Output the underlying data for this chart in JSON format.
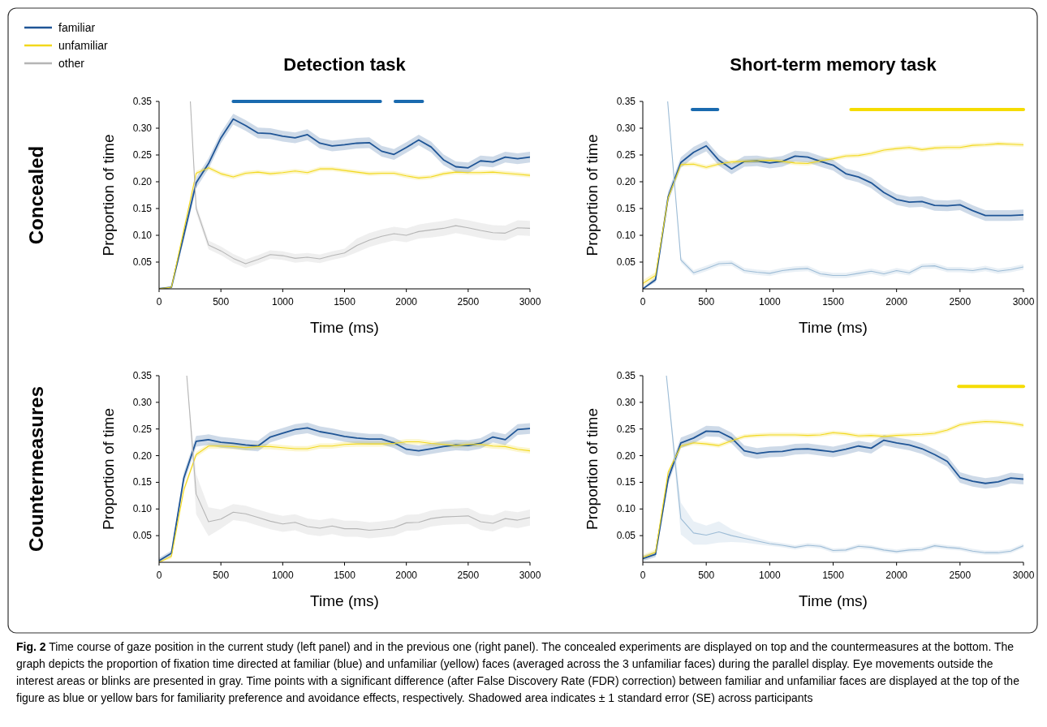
{
  "chart_data": [
    {
      "type": "line",
      "title": "Detection task",
      "xlabel": "Time (ms)",
      "ylabel": "Proportion of time",
      "legend": "top left",
      "annotations": [
        "Concealed"
      ],
      "x": [
        0,
        100,
        200,
        300,
        400,
        500,
        600,
        700,
        800,
        900,
        1000,
        1100,
        1200,
        1300,
        1400,
        1500,
        1600,
        1700,
        1800,
        1900,
        2000,
        2100,
        2200,
        2300,
        2400,
        2500,
        2600,
        2700,
        2800,
        2900,
        3000
      ],
      "xlim": [
        0,
        3000
      ],
      "xticks": [
        0,
        500,
        1000,
        1500,
        2000,
        2500,
        3000
      ],
      "ylim": [
        0,
        0.35
      ],
      "yticks": [
        {
          "value": 0.05,
          "label": "0.05"
        },
        {
          "value": 0.1,
          "label": "0.10"
        },
        {
          "value": 0.15,
          "label": "0.15"
        },
        {
          "value": 0.2,
          "label": "0.20"
        },
        {
          "value": 0.25,
          "label": "0.25"
        },
        {
          "value": 0.3,
          "label": "0.30"
        },
        {
          "value": 0.35,
          "label": "0.35"
        }
      ],
      "series": [
        {
          "color": "#1a6aaf",
          "x": [
            600,
            1790
          ],
          "values": [
            0.35,
            0.35
          ]
        },
        {
          "color": "#1a6aaf",
          "x": [
            1910,
            2130
          ],
          "values": [
            0.35,
            0.35
          ]
        },
        {
          "name": "familiar",
          "color": "#1f5596",
          "values": [
            0,
            0.003,
            0.1,
            0.198,
            0.234,
            0.282,
            0.317,
            0.305,
            0.291,
            0.29,
            0.285,
            0.282,
            0.288,
            0.272,
            0.267,
            0.269,
            0.272,
            0.273,
            0.257,
            0.251,
            0.264,
            0.278,
            0.265,
            0.241,
            0.228,
            0.226,
            0.239,
            0.237,
            0.246,
            0.243,
            0.246
          ],
          "lower": [
            0,
            0.001,
            0.09,
            0.188,
            0.224,
            0.272,
            0.307,
            0.295,
            0.281,
            0.28,
            0.275,
            0.272,
            0.278,
            0.262,
            0.257,
            0.259,
            0.262,
            0.263,
            0.247,
            0.241,
            0.254,
            0.268,
            0.255,
            0.231,
            0.218,
            0.216,
            0.229,
            0.227,
            0.236,
            0.233,
            0.236
          ],
          "upper": [
            0.002,
            0.005,
            0.11,
            0.208,
            0.244,
            0.292,
            0.327,
            0.315,
            0.301,
            0.3,
            0.295,
            0.292,
            0.298,
            0.282,
            0.277,
            0.279,
            0.282,
            0.283,
            0.267,
            0.261,
            0.274,
            0.288,
            0.275,
            0.251,
            0.238,
            0.236,
            0.249,
            0.247,
            0.256,
            0.253,
            0.256
          ]
        },
        {
          "name": "unfamiliar",
          "color": "#f2d81c",
          "values": [
            0,
            0.003,
            0.11,
            0.216,
            0.226,
            0.215,
            0.209,
            0.216,
            0.218,
            0.215,
            0.217,
            0.22,
            0.217,
            0.224,
            0.224,
            0.221,
            0.218,
            0.215,
            0.216,
            0.216,
            0.211,
            0.207,
            0.209,
            0.215,
            0.218,
            0.217,
            0.217,
            0.218,
            0.216,
            0.214,
            0.212
          ],
          "lower": [
            0,
            0.001,
            0.106,
            0.212,
            0.222,
            0.211,
            0.205,
            0.212,
            0.214,
            0.211,
            0.213,
            0.216,
            0.213,
            0.22,
            0.22,
            0.217,
            0.214,
            0.211,
            0.212,
            0.212,
            0.207,
            0.203,
            0.205,
            0.211,
            0.214,
            0.213,
            0.213,
            0.214,
            0.212,
            0.21,
            0.208
          ],
          "upper": [
            0.002,
            0.005,
            0.114,
            0.22,
            0.23,
            0.219,
            0.213,
            0.22,
            0.222,
            0.219,
            0.221,
            0.224,
            0.221,
            0.228,
            0.228,
            0.225,
            0.222,
            0.219,
            0.22,
            0.22,
            0.215,
            0.211,
            0.213,
            0.219,
            0.222,
            0.221,
            0.221,
            0.222,
            0.22,
            0.218,
            0.216
          ]
        },
        {
          "name": "other",
          "color": "#b5b5b5",
          "x": [
            253,
            300,
            400,
            500,
            600,
            700,
            800,
            900,
            1000,
            1100,
            1200,
            1300,
            1400,
            1500,
            1600,
            1700,
            1800,
            1900,
            2000,
            2100,
            2200,
            2300,
            2400,
            2500,
            2600,
            2700,
            2800,
            2900,
            3000
          ],
          "values": [
            0.35,
            0.15,
            0.082,
            0.071,
            0.057,
            0.047,
            0.055,
            0.064,
            0.062,
            0.057,
            0.059,
            0.056,
            0.062,
            0.067,
            0.081,
            0.091,
            0.098,
            0.103,
            0.1,
            0.107,
            0.11,
            0.113,
            0.118,
            0.114,
            0.109,
            0.105,
            0.104,
            0.114,
            0.113
          ],
          "lower": [
            0.35,
            0.142,
            0.074,
            0.063,
            0.049,
            0.039,
            0.047,
            0.056,
            0.054,
            0.049,
            0.051,
            0.048,
            0.054,
            0.059,
            0.068,
            0.078,
            0.085,
            0.09,
            0.087,
            0.094,
            0.096,
            0.099,
            0.104,
            0.1,
            0.095,
            0.091,
            0.09,
            0.1,
            0.099
          ],
          "upper": [
            0.35,
            0.158,
            0.09,
            0.079,
            0.065,
            0.055,
            0.063,
            0.072,
            0.07,
            0.065,
            0.067,
            0.064,
            0.07,
            0.075,
            0.094,
            0.104,
            0.111,
            0.116,
            0.113,
            0.12,
            0.124,
            0.127,
            0.132,
            0.128,
            0.123,
            0.119,
            0.118,
            0.128,
            0.127
          ]
        }
      ]
    },
    {
      "type": "line",
      "title": "Short-term memory task",
      "xlabel": "Time (ms)",
      "ylabel": "Proportion of time",
      "x": [
        0,
        100,
        200,
        300,
        400,
        500,
        600,
        700,
        800,
        900,
        1000,
        1100,
        1200,
        1300,
        1400,
        1500,
        1600,
        1700,
        1800,
        1900,
        2000,
        2100,
        2200,
        2300,
        2400,
        2500,
        2600,
        2700,
        2800,
        2900,
        3000
      ],
      "xlim": [
        0,
        3000
      ],
      "xticks": [
        0,
        500,
        1000,
        1500,
        2000,
        2500,
        3000
      ],
      "ylim": [
        0,
        0.35
      ],
      "yticks": [
        {
          "value": 0.05,
          "label": "0.05"
        },
        {
          "value": 0.1,
          "label": "0.10"
        },
        {
          "value": 0.15,
          "label": "0.15"
        },
        {
          "value": 0.2,
          "label": "0.20"
        },
        {
          "value": 0.25,
          "label": "0.25"
        },
        {
          "value": 0.3,
          "label": "0.30"
        },
        {
          "value": 0.35,
          "label": "0.35"
        }
      ],
      "series": [
        {
          "color": "#1a6aaf",
          "x": [
            390,
            590
          ],
          "values": [
            0.335,
            0.335
          ]
        },
        {
          "color": "#f5dc00",
          "x": [
            1640,
            3000
          ],
          "values": [
            0.335,
            0.335
          ]
        },
        {
          "color": "#1f5596",
          "values": [
            0,
            0.017,
            0.172,
            0.236,
            0.255,
            0.267,
            0.24,
            0.224,
            0.238,
            0.239,
            0.235,
            0.238,
            0.248,
            0.246,
            0.238,
            0.231,
            0.215,
            0.209,
            0.198,
            0.18,
            0.167,
            0.162,
            0.163,
            0.156,
            0.155,
            0.157,
            0.146,
            0.137,
            0.137,
            0.137,
            0.138
          ],
          "lower": [
            0,
            0.012,
            0.162,
            0.226,
            0.245,
            0.257,
            0.23,
            0.214,
            0.228,
            0.229,
            0.225,
            0.228,
            0.238,
            0.236,
            0.228,
            0.221,
            0.205,
            0.199,
            0.188,
            0.17,
            0.157,
            0.152,
            0.153,
            0.146,
            0.145,
            0.147,
            0.136,
            0.127,
            0.127,
            0.127,
            0.128
          ],
          "upper": [
            0.002,
            0.022,
            0.182,
            0.246,
            0.265,
            0.277,
            0.25,
            0.234,
            0.248,
            0.249,
            0.245,
            0.248,
            0.258,
            0.256,
            0.248,
            0.241,
            0.225,
            0.219,
            0.208,
            0.19,
            0.177,
            0.172,
            0.173,
            0.166,
            0.165,
            0.167,
            0.156,
            0.147,
            0.147,
            0.147,
            0.148
          ]
        },
        {
          "color": "#f2d81c",
          "values": [
            0.01,
            0.025,
            0.17,
            0.232,
            0.233,
            0.227,
            0.233,
            0.237,
            0.238,
            0.239,
            0.24,
            0.238,
            0.235,
            0.234,
            0.239,
            0.243,
            0.248,
            0.249,
            0.253,
            0.259,
            0.262,
            0.264,
            0.26,
            0.263,
            0.264,
            0.264,
            0.268,
            0.269,
            0.271,
            0.27,
            0.269
          ],
          "lower": [
            0.004,
            0.019,
            0.166,
            0.228,
            0.229,
            0.223,
            0.229,
            0.233,
            0.234,
            0.235,
            0.236,
            0.234,
            0.231,
            0.23,
            0.235,
            0.239,
            0.244,
            0.245,
            0.249,
            0.255,
            0.258,
            0.26,
            0.256,
            0.259,
            0.26,
            0.26,
            0.264,
            0.265,
            0.267,
            0.266,
            0.265
          ],
          "upper": [
            0.016,
            0.031,
            0.174,
            0.236,
            0.237,
            0.231,
            0.237,
            0.241,
            0.242,
            0.243,
            0.244,
            0.242,
            0.239,
            0.238,
            0.243,
            0.247,
            0.252,
            0.253,
            0.257,
            0.263,
            0.266,
            0.268,
            0.264,
            0.267,
            0.268,
            0.268,
            0.272,
            0.273,
            0.275,
            0.274,
            0.273
          ]
        },
        {
          "color": "#9dbcd6",
          "x": [
            196,
            300,
            400,
            500,
            600,
            700,
            800,
            900,
            1000,
            1100,
            1200,
            1300,
            1400,
            1500,
            1600,
            1700,
            1800,
            1900,
            2000,
            2100,
            2200,
            2300,
            2400,
            2500,
            2600,
            2700,
            2800,
            2900,
            3000
          ],
          "values": [
            0.35,
            0.054,
            0.03,
            0.038,
            0.047,
            0.048,
            0.034,
            0.031,
            0.029,
            0.034,
            0.037,
            0.038,
            0.028,
            0.025,
            0.025,
            0.029,
            0.033,
            0.028,
            0.034,
            0.03,
            0.042,
            0.043,
            0.036,
            0.036,
            0.034,
            0.038,
            0.033,
            0.036,
            0.041
          ],
          "lower": [
            0.35,
            0.049,
            0.025,
            0.033,
            0.042,
            0.043,
            0.029,
            0.026,
            0.024,
            0.029,
            0.032,
            0.033,
            0.023,
            0.02,
            0.02,
            0.024,
            0.028,
            0.023,
            0.029,
            0.025,
            0.037,
            0.038,
            0.031,
            0.031,
            0.029,
            0.033,
            0.028,
            0.031,
            0.036
          ],
          "upper": [
            0.35,
            0.059,
            0.035,
            0.043,
            0.052,
            0.053,
            0.039,
            0.036,
            0.034,
            0.039,
            0.042,
            0.043,
            0.033,
            0.03,
            0.03,
            0.034,
            0.038,
            0.033,
            0.039,
            0.035,
            0.047,
            0.048,
            0.041,
            0.041,
            0.039,
            0.043,
            0.038,
            0.041,
            0.046
          ]
        }
      ]
    },
    {
      "type": "line",
      "xlabel": "Time (ms)",
      "ylabel": "Proportion of time",
      "annotations": [
        "Countermeasures"
      ],
      "x": [
        0,
        100,
        200,
        300,
        400,
        500,
        600,
        700,
        800,
        900,
        1000,
        1100,
        1200,
        1300,
        1400,
        1500,
        1600,
        1700,
        1800,
        1900,
        2000,
        2100,
        2200,
        2300,
        2400,
        2500,
        2600,
        2700,
        2800,
        2900,
        3000
      ],
      "xlim": [
        0,
        3000
      ],
      "xticks": [
        0,
        500,
        1000,
        1500,
        2000,
        2500,
        3000
      ],
      "ylim": [
        0,
        0.35
      ],
      "yticks": [
        {
          "value": 0.05,
          "label": "0.05"
        },
        {
          "value": 0.1,
          "label": "0.10"
        },
        {
          "value": 0.15,
          "label": "0.15"
        },
        {
          "value": 0.2,
          "label": "0.20"
        },
        {
          "value": 0.25,
          "label": "0.25"
        },
        {
          "value": 0.3,
          "label": "0.30"
        },
        {
          "value": 0.35,
          "label": "0.35"
        }
      ],
      "series": [
        {
          "color": "#1f5596",
          "values": [
            0.003,
            0.017,
            0.158,
            0.227,
            0.23,
            0.225,
            0.223,
            0.22,
            0.218,
            0.235,
            0.242,
            0.249,
            0.252,
            0.245,
            0.241,
            0.236,
            0.233,
            0.231,
            0.231,
            0.224,
            0.212,
            0.209,
            0.213,
            0.217,
            0.22,
            0.219,
            0.223,
            0.235,
            0.23,
            0.249,
            0.251
          ],
          "lower": [
            0,
            0.012,
            0.148,
            0.217,
            0.22,
            0.215,
            0.213,
            0.21,
            0.208,
            0.225,
            0.232,
            0.239,
            0.242,
            0.235,
            0.231,
            0.226,
            0.223,
            0.221,
            0.221,
            0.214,
            0.202,
            0.199,
            0.203,
            0.207,
            0.21,
            0.209,
            0.213,
            0.225,
            0.22,
            0.239,
            0.241
          ],
          "upper": [
            0.008,
            0.022,
            0.168,
            0.237,
            0.24,
            0.235,
            0.233,
            0.23,
            0.228,
            0.245,
            0.252,
            0.259,
            0.262,
            0.255,
            0.251,
            0.246,
            0.243,
            0.241,
            0.241,
            0.234,
            0.222,
            0.219,
            0.223,
            0.227,
            0.23,
            0.229,
            0.233,
            0.245,
            0.24,
            0.259,
            0.261
          ]
        },
        {
          "color": "#f2d81c",
          "values": [
            0,
            0.011,
            0.136,
            0.202,
            0.218,
            0.218,
            0.217,
            0.215,
            0.217,
            0.217,
            0.215,
            0.213,
            0.213,
            0.218,
            0.218,
            0.221,
            0.222,
            0.222,
            0.222,
            0.223,
            0.226,
            0.226,
            0.223,
            0.221,
            0.219,
            0.221,
            0.221,
            0.218,
            0.217,
            0.212,
            0.209
          ],
          "lower": [
            0,
            0.007,
            0.13,
            0.197,
            0.213,
            0.213,
            0.212,
            0.21,
            0.212,
            0.212,
            0.21,
            0.208,
            0.208,
            0.213,
            0.213,
            0.216,
            0.217,
            0.217,
            0.217,
            0.218,
            0.221,
            0.221,
            0.218,
            0.216,
            0.214,
            0.216,
            0.216,
            0.213,
            0.212,
            0.207,
            0.204
          ],
          "upper": [
            0.004,
            0.015,
            0.142,
            0.207,
            0.223,
            0.223,
            0.222,
            0.22,
            0.222,
            0.222,
            0.22,
            0.218,
            0.218,
            0.223,
            0.223,
            0.226,
            0.227,
            0.227,
            0.227,
            0.228,
            0.231,
            0.231,
            0.228,
            0.226,
            0.224,
            0.226,
            0.226,
            0.223,
            0.222,
            0.217,
            0.214
          ]
        },
        {
          "color": "#b5b5b5",
          "x": [
            224,
            300,
            400,
            500,
            600,
            700,
            800,
            900,
            1000,
            1100,
            1200,
            1300,
            1400,
            1500,
            1600,
            1700,
            1800,
            1900,
            2000,
            2100,
            2200,
            2300,
            2400,
            2500,
            2600,
            2700,
            2800,
            2900,
            3000
          ],
          "values": [
            0.35,
            0.128,
            0.076,
            0.081,
            0.094,
            0.091,
            0.084,
            0.077,
            0.072,
            0.075,
            0.067,
            0.064,
            0.068,
            0.063,
            0.063,
            0.06,
            0.062,
            0.065,
            0.074,
            0.075,
            0.082,
            0.085,
            0.086,
            0.087,
            0.076,
            0.073,
            0.082,
            0.079,
            0.084
          ],
          "lower": [
            0.35,
            0.09,
            0.049,
            0.063,
            0.079,
            0.076,
            0.069,
            0.062,
            0.057,
            0.06,
            0.052,
            0.049,
            0.053,
            0.048,
            0.048,
            0.045,
            0.047,
            0.05,
            0.059,
            0.06,
            0.067,
            0.07,
            0.071,
            0.072,
            0.061,
            0.058,
            0.067,
            0.064,
            0.069
          ],
          "upper": [
            0.35,
            0.165,
            0.103,
            0.099,
            0.109,
            0.106,
            0.099,
            0.092,
            0.087,
            0.09,
            0.082,
            0.079,
            0.083,
            0.078,
            0.078,
            0.075,
            0.077,
            0.08,
            0.089,
            0.09,
            0.097,
            0.1,
            0.101,
            0.102,
            0.091,
            0.088,
            0.097,
            0.094,
            0.099
          ]
        }
      ]
    },
    {
      "type": "line",
      "xlabel": "Time (ms)",
      "ylabel": "Proportion of time",
      "annotations": [
        "Fig. 2 Time course of gaze position in the current study (left panel) and in the previous one (right panel). The concealed experiments are displayed on top and the countermeasures at the bottom. The graph depicts the proportion of fixation time directed at familiar (blue) and unfamiliar (yellow) faces (averaged across the 3 unfamiliar faces) during the parallel display. Eye movements outside the interest areas or blinks are presented in gray. Time points with a significant difference (after False Discovery Rate (FDR) correction) between familiar and unfamiliar faces are displayed at the top of the figure as blue or yellow bars for familiarity preference and avoidance effects, respectively. Shadowed area indicates ± 1 standard error (SE) across participants"
      ],
      "x": [
        0,
        100,
        200,
        300,
        400,
        500,
        600,
        700,
        800,
        900,
        1000,
        1100,
        1200,
        1300,
        1400,
        1500,
        1600,
        1700,
        1800,
        1900,
        2000,
        2100,
        2200,
        2300,
        2400,
        2500,
        2600,
        2700,
        2800,
        2900,
        3000
      ],
      "xlim": [
        0,
        3000
      ],
      "xticks": [
        0,
        500,
        1000,
        1500,
        2000,
        2500,
        3000
      ],
      "ylim": [
        0,
        0.35
      ],
      "yticks": [
        {
          "value": 0.05,
          "label": "0.05"
        },
        {
          "value": 0.1,
          "label": "0.10"
        },
        {
          "value": 0.15,
          "label": "0.15"
        },
        {
          "value": 0.2,
          "label": "0.20"
        },
        {
          "value": 0.25,
          "label": "0.25"
        },
        {
          "value": 0.3,
          "label": "0.30"
        },
        {
          "value": 0.35,
          "label": "0.35"
        }
      ],
      "series": [
        {
          "color": "#f5dc00",
          "x": [
            2490,
            3000
          ],
          "values": [
            0.33,
            0.33
          ]
        },
        {
          "color": "#1f5596",
          "values": [
            0.007,
            0.015,
            0.157,
            0.224,
            0.233,
            0.246,
            0.245,
            0.233,
            0.209,
            0.204,
            0.207,
            0.208,
            0.212,
            0.213,
            0.21,
            0.207,
            0.212,
            0.218,
            0.214,
            0.229,
            0.224,
            0.22,
            0.213,
            0.202,
            0.189,
            0.159,
            0.152,
            0.148,
            0.151,
            0.158,
            0.156
          ],
          "lower": [
            0.002,
            0.01,
            0.147,
            0.214,
            0.223,
            0.236,
            0.235,
            0.223,
            0.199,
            0.194,
            0.197,
            0.198,
            0.202,
            0.203,
            0.2,
            0.197,
            0.202,
            0.208,
            0.204,
            0.219,
            0.214,
            0.21,
            0.203,
            0.192,
            0.179,
            0.149,
            0.142,
            0.138,
            0.141,
            0.148,
            0.146
          ],
          "upper": [
            0.012,
            0.02,
            0.167,
            0.234,
            0.243,
            0.256,
            0.255,
            0.243,
            0.219,
            0.214,
            0.217,
            0.218,
            0.222,
            0.223,
            0.22,
            0.217,
            0.222,
            0.228,
            0.224,
            0.239,
            0.234,
            0.23,
            0.223,
            0.212,
            0.199,
            0.169,
            0.162,
            0.158,
            0.161,
            0.168,
            0.166
          ]
        },
        {
          "color": "#f2d81c",
          "values": [
            0.009,
            0.019,
            0.169,
            0.218,
            0.224,
            0.222,
            0.219,
            0.228,
            0.236,
            0.238,
            0.239,
            0.239,
            0.239,
            0.238,
            0.239,
            0.243,
            0.241,
            0.237,
            0.238,
            0.236,
            0.238,
            0.239,
            0.24,
            0.242,
            0.248,
            0.258,
            0.262,
            0.264,
            0.263,
            0.261,
            0.257
          ],
          "lower": [
            0.004,
            0.014,
            0.165,
            0.214,
            0.22,
            0.218,
            0.215,
            0.224,
            0.232,
            0.234,
            0.235,
            0.235,
            0.235,
            0.234,
            0.235,
            0.239,
            0.237,
            0.233,
            0.234,
            0.232,
            0.234,
            0.235,
            0.236,
            0.238,
            0.244,
            0.254,
            0.258,
            0.26,
            0.259,
            0.257,
            0.253
          ],
          "upper": [
            0.014,
            0.024,
            0.173,
            0.222,
            0.228,
            0.226,
            0.223,
            0.232,
            0.24,
            0.242,
            0.243,
            0.243,
            0.243,
            0.242,
            0.243,
            0.247,
            0.245,
            0.241,
            0.242,
            0.24,
            0.242,
            0.243,
            0.244,
            0.246,
            0.252,
            0.262,
            0.266,
            0.268,
            0.267,
            0.265,
            0.261
          ]
        },
        {
          "color": "#9dbcd6",
          "x": [
            186,
            300,
            400,
            500,
            600,
            700,
            800,
            900,
            1000,
            1100,
            1200,
            1300,
            1400,
            1500,
            1600,
            1700,
            1800,
            1900,
            2000,
            2100,
            2200,
            2300,
            2400,
            2500,
            2600,
            2700,
            2800,
            2900,
            3000
          ],
          "values": [
            0.35,
            0.082,
            0.055,
            0.051,
            0.057,
            0.05,
            0.045,
            0.04,
            0.035,
            0.032,
            0.028,
            0.032,
            0.03,
            0.022,
            0.023,
            0.03,
            0.028,
            0.023,
            0.02,
            0.023,
            0.024,
            0.031,
            0.028,
            0.026,
            0.021,
            0.018,
            0.018,
            0.021,
            0.031
          ],
          "lower": [
            0.35,
            0.052,
            0.033,
            0.033,
            0.037,
            0.038,
            0.037,
            0.034,
            0.031,
            0.028,
            0.024,
            0.028,
            0.026,
            0.018,
            0.019,
            0.026,
            0.024,
            0.019,
            0.016,
            0.019,
            0.02,
            0.027,
            0.024,
            0.022,
            0.017,
            0.014,
            0.014,
            0.017,
            0.027
          ],
          "upper": [
            0.35,
            0.112,
            0.077,
            0.069,
            0.077,
            0.062,
            0.053,
            0.046,
            0.039,
            0.036,
            0.032,
            0.036,
            0.034,
            0.026,
            0.027,
            0.034,
            0.032,
            0.027,
            0.024,
            0.027,
            0.028,
            0.035,
            0.032,
            0.03,
            0.025,
            0.022,
            0.022,
            0.025,
            0.035
          ]
        }
      ]
    }
  ]
}
